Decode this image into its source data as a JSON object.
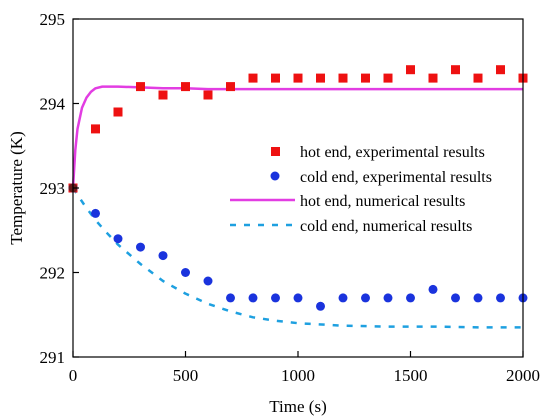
{
  "chart_data": {
    "type": "scatter",
    "xlabel": "Time (s)",
    "ylabel": "Temperature (K)",
    "xlim": [
      0,
      2000
    ],
    "ylim": [
      291,
      295
    ],
    "x_ticks": [
      0,
      500,
      1000,
      1500,
      2000
    ],
    "y_ticks": [
      291,
      292,
      293,
      294,
      295
    ],
    "grid": false,
    "legend_position": "center-right",
    "series": [
      {
        "name": "hot end, experimental results",
        "style": "square-markers",
        "color": "#ee1111",
        "x": [
          0,
          100,
          200,
          300,
          400,
          500,
          600,
          700,
          800,
          900,
          1000,
          1100,
          1200,
          1300,
          1400,
          1500,
          1600,
          1700,
          1800,
          1900,
          2000
        ],
        "y": [
          293.0,
          293.7,
          293.9,
          294.2,
          294.1,
          294.2,
          294.1,
          294.2,
          294.3,
          294.3,
          294.3,
          294.3,
          294.3,
          294.3,
          294.3,
          294.4,
          294.3,
          294.4,
          294.3,
          294.4,
          294.3
        ]
      },
      {
        "name": "cold end, experimental results",
        "style": "circle-markers",
        "color": "#1a33dd",
        "x": [
          0,
          100,
          200,
          300,
          400,
          500,
          600,
          700,
          800,
          900,
          1000,
          1100,
          1200,
          1300,
          1400,
          1500,
          1600,
          1700,
          1800,
          1900,
          2000
        ],
        "y": [
          293.0,
          292.7,
          292.4,
          292.3,
          292.2,
          292.0,
          291.9,
          291.7,
          291.7,
          291.7,
          291.7,
          291.6,
          291.7,
          291.7,
          291.7,
          291.7,
          291.8,
          291.7,
          291.7,
          291.7,
          291.7
        ]
      },
      {
        "name": "hot end, numerical results",
        "style": "solid-line",
        "color": "#e23de2",
        "x": [
          0,
          10,
          20,
          40,
          60,
          80,
          100,
          130,
          160,
          200,
          300,
          400,
          500,
          600,
          700,
          800,
          1000,
          1200,
          1400,
          1600,
          1800,
          2000
        ],
        "y": [
          293.0,
          293.45,
          293.7,
          293.95,
          294.07,
          294.14,
          294.18,
          294.2,
          294.2,
          294.2,
          294.19,
          294.18,
          294.18,
          294.17,
          294.17,
          294.17,
          294.17,
          294.17,
          294.17,
          294.17,
          294.17,
          294.17
        ]
      },
      {
        "name": "cold end, numerical results",
        "style": "dashed-line",
        "color": "#1ea0e0",
        "x": [
          0,
          50,
          100,
          150,
          200,
          300,
          400,
          500,
          600,
          700,
          800,
          900,
          1000,
          1200,
          1400,
          1600,
          1800,
          2000
        ],
        "y": [
          293.0,
          292.8,
          292.62,
          292.47,
          292.33,
          292.1,
          291.9,
          291.75,
          291.63,
          291.54,
          291.47,
          291.43,
          291.4,
          291.37,
          291.36,
          291.36,
          291.35,
          291.35
        ]
      }
    ]
  }
}
